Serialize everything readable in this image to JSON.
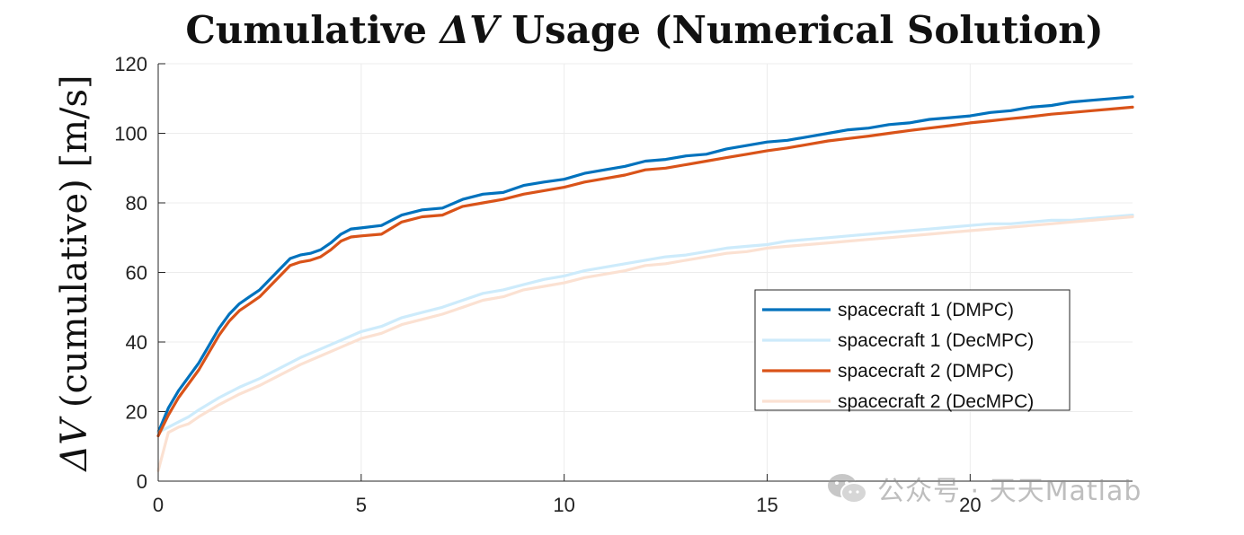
{
  "chart_data": {
    "type": "line",
    "title": "Cumulative ΔV Usage (Numerical Solution)",
    "title_prefix": "Cumulative ",
    "title_symbol": "ΔV",
    "title_suffix": " Usage (Numerical Solution)",
    "ylabel": "ΔV (cumulative) [m/s]",
    "ylabel_symbol": "ΔV",
    "ylabel_suffix": " (cumulative) [m/s]",
    "xlabel": "",
    "xlim": [
      0,
      24
    ],
    "ylim": [
      0,
      120
    ],
    "xticks": [
      0,
      5,
      10,
      15,
      20
    ],
    "yticks": [
      0,
      20,
      40,
      60,
      80,
      100,
      120
    ],
    "grid": true,
    "legend_position": "center-right",
    "series": [
      {
        "name": "spacecraft 1 (DMPC)",
        "color": "#0072BD",
        "x": [
          0,
          0.25,
          0.5,
          0.75,
          1.0,
          1.25,
          1.5,
          1.75,
          2.0,
          2.25,
          2.5,
          2.75,
          3.0,
          3.25,
          3.5,
          3.75,
          4.0,
          4.25,
          4.5,
          4.75,
          5.0,
          5.5,
          6.0,
          6.5,
          7.0,
          7.5,
          8.0,
          8.5,
          9.0,
          9.5,
          10.0,
          10.5,
          11.0,
          11.5,
          12.0,
          12.5,
          13.0,
          13.5,
          14.0,
          14.5,
          15.0,
          15.5,
          16.0,
          16.5,
          17.0,
          17.5,
          18.0,
          18.5,
          19.0,
          19.5,
          20.0,
          20.5,
          21.0,
          21.5,
          22.0,
          22.5,
          23.0,
          23.5,
          24.0
        ],
        "values": [
          14,
          21,
          26,
          30,
          34,
          39,
          44,
          48,
          51,
          53,
          55,
          58,
          61,
          64,
          65,
          65.5,
          66.5,
          68.5,
          71,
          72.5,
          72.8,
          73.5,
          76.5,
          78,
          78.5,
          81,
          82.5,
          83,
          85,
          86,
          86.8,
          88.5,
          89.5,
          90.5,
          92,
          92.5,
          93.5,
          94,
          95.5,
          96.5,
          97.5,
          98,
          99,
          100,
          101,
          101.5,
          102.5,
          103,
          104,
          104.5,
          105,
          106,
          106.5,
          107.5,
          108,
          109,
          109.5,
          110,
          110.5
        ]
      },
      {
        "name": "spacecraft 1 (DecMPC)",
        "color": "#CDEBFB",
        "x": [
          0,
          0.25,
          0.5,
          0.75,
          1.0,
          1.5,
          2.0,
          2.5,
          3.0,
          3.5,
          4.0,
          4.5,
          5.0,
          5.5,
          6.0,
          6.5,
          7.0,
          7.5,
          8.0,
          8.5,
          9.0,
          9.5,
          10.0,
          10.5,
          11.0,
          11.5,
          12.0,
          12.5,
          13.0,
          13.5,
          14.0,
          14.5,
          15.0,
          15.5,
          16.0,
          16.5,
          17.0,
          17.5,
          18.0,
          18.5,
          19.0,
          19.5,
          20.0,
          20.5,
          21.0,
          21.5,
          22.0,
          22.5,
          23.0,
          23.5,
          24.0
        ],
        "values": [
          14,
          15.5,
          17,
          18.5,
          20.5,
          24,
          27,
          29.5,
          32.5,
          35.5,
          38,
          40.5,
          43,
          44.5,
          47,
          48.5,
          50,
          52,
          54,
          55,
          56.5,
          58,
          59,
          60.5,
          61.5,
          62.5,
          63.5,
          64.5,
          65,
          66,
          67,
          67.5,
          68,
          69,
          69.5,
          70,
          70.5,
          71,
          71.5,
          72,
          72.5,
          73,
          73.5,
          74,
          74,
          74.5,
          75,
          75,
          75.5,
          76,
          76.5
        ]
      },
      {
        "name": "spacecraft 2 (DMPC)",
        "color": "#D95319",
        "x": [
          0,
          0.25,
          0.5,
          0.75,
          1.0,
          1.25,
          1.5,
          1.75,
          2.0,
          2.25,
          2.5,
          2.75,
          3.0,
          3.25,
          3.5,
          3.75,
          4.0,
          4.25,
          4.5,
          4.75,
          5.0,
          5.5,
          6.0,
          6.5,
          7.0,
          7.5,
          8.0,
          8.5,
          9.0,
          9.5,
          10.0,
          10.5,
          11.0,
          11.5,
          12.0,
          12.5,
          13.0,
          13.5,
          14.0,
          14.5,
          15.0,
          15.5,
          16.0,
          16.5,
          17.0,
          17.5,
          18.0,
          18.5,
          19.0,
          19.5,
          20.0,
          20.5,
          21.0,
          21.5,
          22.0,
          22.5,
          23.0,
          23.5,
          24.0
        ],
        "values": [
          13,
          19,
          24,
          28,
          32,
          37,
          42,
          46,
          49,
          51,
          53,
          56,
          59,
          62,
          63,
          63.5,
          64.5,
          66.5,
          69,
          70.2,
          70.5,
          71,
          74.5,
          76,
          76.5,
          79,
          80,
          81,
          82.5,
          83.5,
          84.5,
          86,
          87,
          88,
          89.5,
          90,
          91,
          92,
          93,
          94,
          95,
          95.8,
          96.8,
          97.8,
          98.5,
          99.2,
          100,
          100.8,
          101.5,
          102.2,
          103,
          103.6,
          104.2,
          104.8,
          105.5,
          106,
          106.5,
          107,
          107.5
        ]
      },
      {
        "name": "spacecraft 2 (DecMPC)",
        "color": "#FBE1D2",
        "x": [
          0,
          0.25,
          0.5,
          0.75,
          1.0,
          1.5,
          2.0,
          2.5,
          3.0,
          3.5,
          4.0,
          4.5,
          5.0,
          5.5,
          6.0,
          6.5,
          7.0,
          7.5,
          8.0,
          8.5,
          9.0,
          9.5,
          10.0,
          10.5,
          11.0,
          11.5,
          12.0,
          12.5,
          13.0,
          13.5,
          14.0,
          14.5,
          15.0,
          15.5,
          16.0,
          16.5,
          17.0,
          17.5,
          18.0,
          18.5,
          19.0,
          19.5,
          20.0,
          20.5,
          21.0,
          21.5,
          22.0,
          22.5,
          23.0,
          23.5,
          24.0
        ],
        "values": [
          3,
          14,
          15.5,
          16.5,
          18.5,
          22,
          25,
          27.5,
          30.5,
          33.5,
          36,
          38.5,
          41,
          42.5,
          45,
          46.5,
          48,
          50,
          52,
          53,
          55,
          56,
          57,
          58.5,
          59.5,
          60.5,
          62,
          62.5,
          63.5,
          64.5,
          65.5,
          66,
          67,
          67.5,
          68,
          68.5,
          69,
          69.5,
          70,
          70.5,
          71,
          71.5,
          72,
          72.5,
          73,
          73.5,
          74,
          74.5,
          75,
          75.5,
          76
        ]
      }
    ]
  },
  "watermark": {
    "text": "公众号 · 天天Matlab",
    "icon": "wechat-icon"
  }
}
